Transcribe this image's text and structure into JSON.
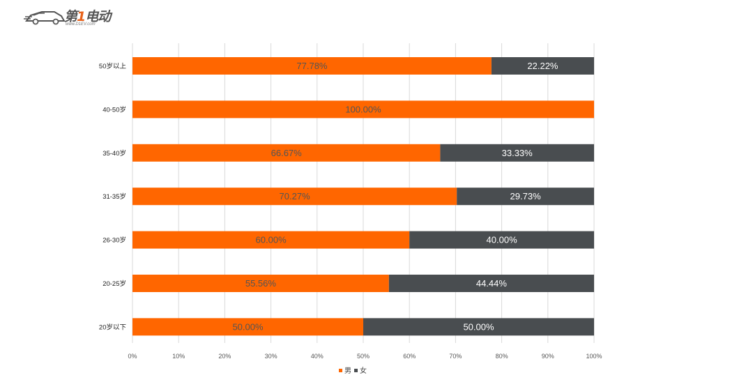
{
  "logo": {
    "brand_prefix": "第",
    "brand_digit": "1",
    "brand_suffix": "电动",
    "url": "www.D1EV.com"
  },
  "chart_data": {
    "type": "bar",
    "orientation": "horizontal",
    "stacked": "percent",
    "categories": [
      "50岁以上",
      "40-50岁",
      "35-40岁",
      "31-35岁",
      "26-30岁",
      "20-25岁",
      "20岁以下"
    ],
    "series": [
      {
        "name": "男",
        "color": "#ff6600",
        "label_color": "#555555",
        "values": [
          77.78,
          100.0,
          66.67,
          70.27,
          60.0,
          55.56,
          50.0
        ],
        "labels": [
          "77.78%",
          "100.00%",
          "66.67%",
          "70.27%",
          "60.00%",
          "55.56%",
          "50.00%"
        ]
      },
      {
        "name": "女",
        "color": "#494d50",
        "label_color": "#ffffff",
        "values": [
          22.22,
          0.0,
          33.33,
          29.73,
          40.0,
          44.44,
          50.0
        ],
        "labels": [
          "22.22%",
          "",
          "33.33%",
          "29.73%",
          "40.00%",
          "44.44%",
          "50.00%"
        ]
      }
    ],
    "xlim": [
      0,
      100
    ],
    "xticks": [
      "0%",
      "10%",
      "20%",
      "30%",
      "40%",
      "50%",
      "60%",
      "70%",
      "80%",
      "90%",
      "100%"
    ],
    "grid": true,
    "legend_position": "bottom",
    "title": "",
    "xlabel": "",
    "ylabel": ""
  }
}
